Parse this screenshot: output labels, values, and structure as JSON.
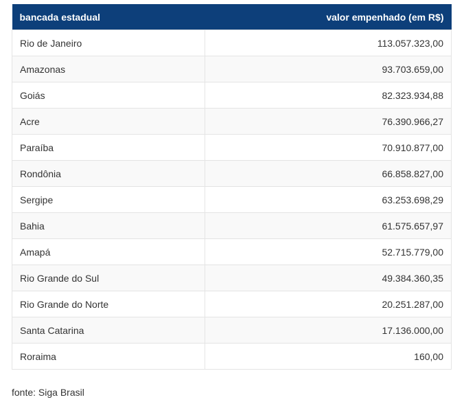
{
  "table": {
    "headers": {
      "state": "bancada estadual",
      "value": "valor empenhado (em R$)"
    },
    "rows": [
      {
        "state": "Rio de Janeiro",
        "value": "113.057.323,00"
      },
      {
        "state": "Amazonas",
        "value": "93.703.659,00"
      },
      {
        "state": "Goiás",
        "value": "82.323.934,88"
      },
      {
        "state": "Acre",
        "value": "76.390.966,27"
      },
      {
        "state": "Paraíba",
        "value": "70.910.877,00"
      },
      {
        "state": "Rondônia",
        "value": "66.858.827,00"
      },
      {
        "state": "Sergipe",
        "value": "63.253.698,29"
      },
      {
        "state": "Bahia",
        "value": "61.575.657,97"
      },
      {
        "state": "Amapá",
        "value": "52.715.779,00"
      },
      {
        "state": "Rio Grande do Sul",
        "value": "49.384.360,35"
      },
      {
        "state": "Rio Grande do Norte",
        "value": "20.251.287,00"
      },
      {
        "state": "Santa Catarina",
        "value": "17.136.000,00"
      },
      {
        "state": "Roraima",
        "value": "160,00"
      }
    ]
  },
  "source": "fonte: Siga Brasil",
  "colors": {
    "header_background": "#0d3f7a",
    "header_text": "#ffffff",
    "zebra_row": "#f9f9f9"
  }
}
